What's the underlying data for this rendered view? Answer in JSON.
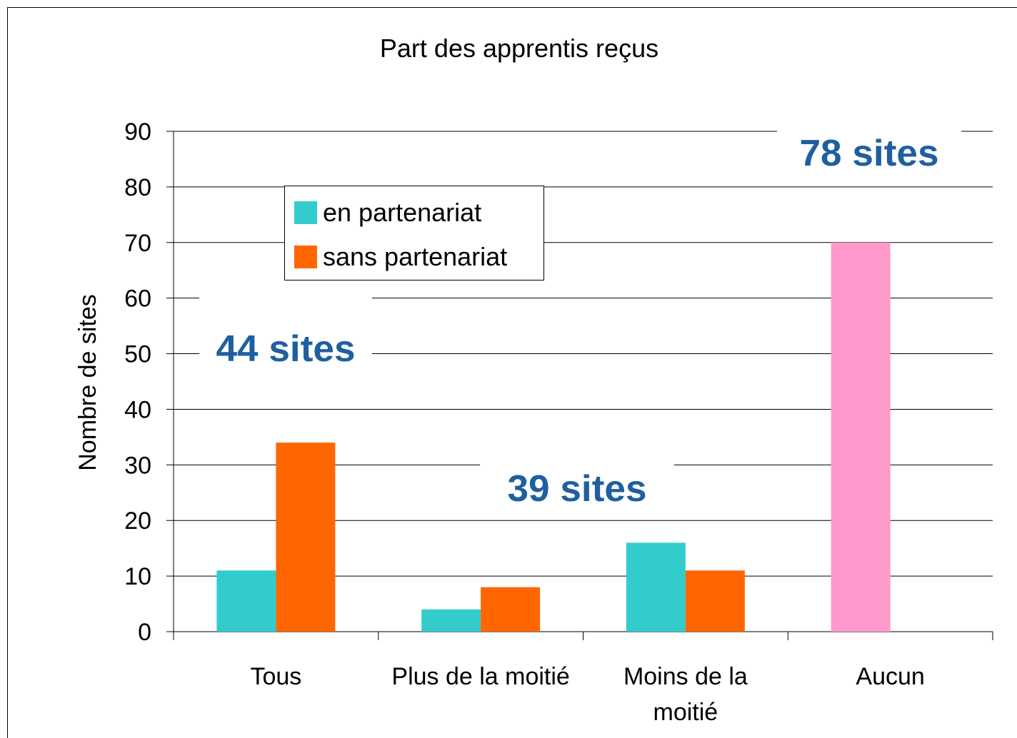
{
  "chart_data": {
    "type": "bar",
    "title": "Part des apprentis reçus",
    "y_label": "Nombre de sites",
    "categories": [
      "Tous",
      "Plus de la moitié",
      "Moins de la moitié",
      "Aucun"
    ],
    "series": [
      {
        "name": "en partenariat",
        "color": "#33cccc",
        "point_colors": [
          "#33cccc",
          "#33cccc",
          "#33cccc",
          "#ff99cc"
        ],
        "values": [
          11,
          4,
          16,
          70
        ]
      },
      {
        "name": "sans partenariat",
        "color": "#ff6600",
        "values": [
          34,
          8,
          11,
          null
        ]
      }
    ],
    "annotations": [
      "44 sites",
      "39 sites",
      "78 sites"
    ],
    "ylim": [
      0,
      90
    ],
    "yticks": [
      0,
      10,
      20,
      30,
      40,
      50,
      60,
      70,
      80,
      90
    ],
    "grid": true
  }
}
